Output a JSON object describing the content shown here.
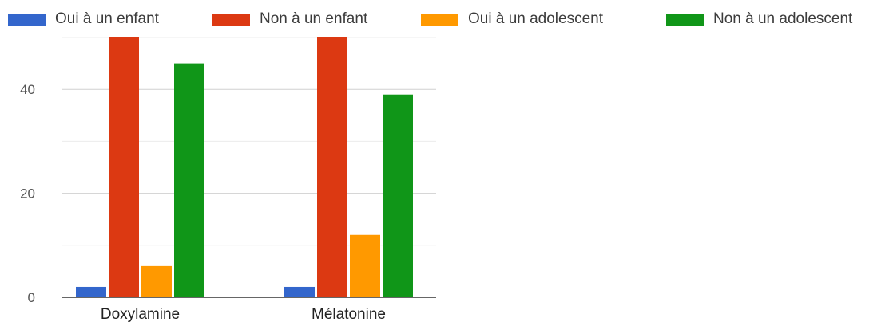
{
  "chart_data": {
    "type": "bar",
    "categories": [
      "Doxylamine",
      "Mélatonine"
    ],
    "series": [
      {
        "name": "Oui à un enfant",
        "color": "#3366cc",
        "values": [
          2,
          2
        ]
      },
      {
        "name": "Non à un enfant",
        "color": "#dc3912",
        "values": [
          50,
          50
        ]
      },
      {
        "name": "Oui à un adolescent",
        "color": "#ff9900",
        "values": [
          6,
          12
        ]
      },
      {
        "name": "Non à un adolescent",
        "color": "#109618",
        "values": [
          45,
          39
        ]
      }
    ],
    "yticks": [
      0,
      20,
      40
    ],
    "ylim": [
      0,
      50
    ],
    "grid": true,
    "legend_position": "top"
  }
}
